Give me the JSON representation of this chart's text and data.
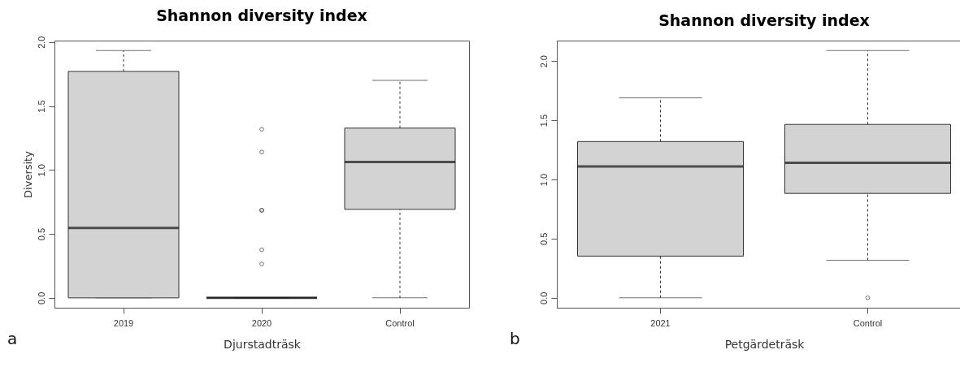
{
  "chart_data": [
    {
      "type": "box",
      "title": "Shannon diversity index",
      "xlabel": "Djurstadträsk",
      "ylabel": "Diversity",
      "categories": [
        "2019",
        "2020",
        "Control"
      ],
      "boxes": [
        {
          "low": 0,
          "q1": 0,
          "median": 0.546,
          "q3": 1.77,
          "high": 1.934
        },
        {
          "low": 0,
          "q1": 0,
          "median": 0,
          "q3": 0,
          "high": 0,
          "outliers": [
            0.265,
            0.375,
            0.685,
            0.685,
            1.14,
            1.318
          ]
        },
        {
          "low": 0,
          "q1": 0.692,
          "median": 1.062,
          "q3": 1.327,
          "high": 1.7
        }
      ],
      "ylim": [
        -0.077,
        2.011
      ],
      "yticks": [
        {
          "value": 0,
          "label": "0.0"
        },
        {
          "value": 0.5,
          "label": "0.5"
        },
        {
          "value": 1,
          "label": "1.0"
        },
        {
          "value": 1.5,
          "label": "1.5"
        },
        {
          "value": 2,
          "label": "2.0"
        }
      ],
      "annotations": [
        "a"
      ]
    },
    {
      "type": "box",
      "title": "Shannon diversity index",
      "xlabel": "Petgärdeträsk",
      "categories": [
        "2021",
        "Control"
      ],
      "boxes": [
        {
          "low": 0,
          "q1": 0.352,
          "median": 1.11,
          "q3": 1.32,
          "high": 1.69
        },
        {
          "low": 0.317,
          "q1": 0.882,
          "median": 1.141,
          "q3": 1.465,
          "high": 2.089,
          "outliers": [
            0
          ]
        }
      ],
      "ylim": [
        -0.084,
        2.173
      ],
      "yticks": [
        {
          "value": 0,
          "label": "0.0"
        },
        {
          "value": 0.5,
          "label": "0.5"
        },
        {
          "value": 1,
          "label": "1.0"
        },
        {
          "value": 1.5,
          "label": "1.5"
        },
        {
          "value": 2,
          "label": "2.0"
        }
      ],
      "annotations": [
        "b"
      ]
    }
  ]
}
